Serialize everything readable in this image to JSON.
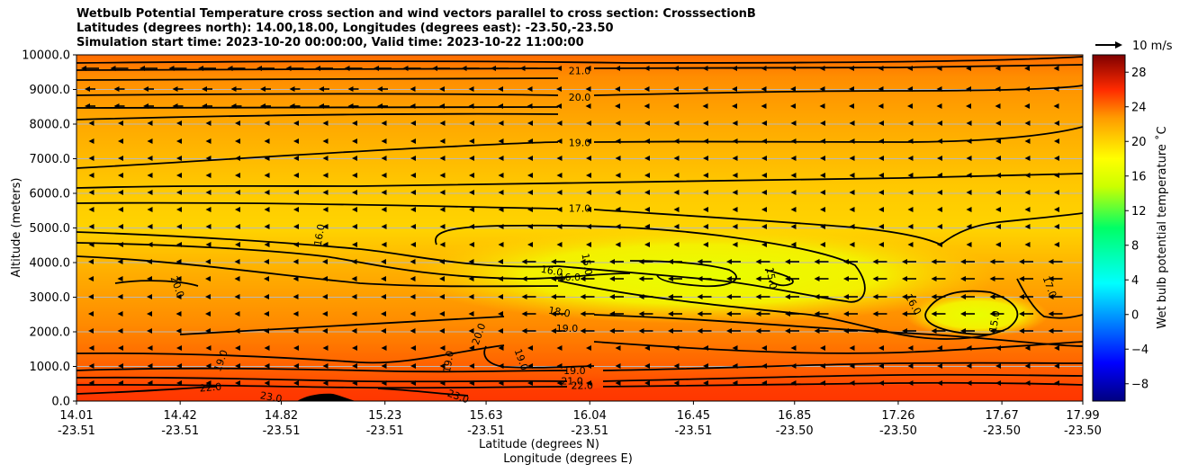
{
  "title_lines": [
    "Wetbulb Potential Temperature cross section and wind vectors parallel to cross section: CrosssectionB",
    "Latitudes (degrees north): 14.00,18.00, Longitudes (degrees east): -23.50,-23.50",
    "Simulation start time: 2023-10-20 00:00:00, Valid time: 2023-10-22 11:00:00"
  ],
  "chart_data": {
    "type": "heatmap",
    "subtype": "filled contour cross section with contour lines and wind vectors",
    "ylabel": "Altitude (meters)",
    "xlabel_lines": [
      "Latitude (degrees N)",
      "Longitude (degrees E)"
    ],
    "ylim": [
      0,
      10000
    ],
    "yticks": [
      "0.0",
      "1000.0",
      "2000.0",
      "3000.0",
      "4000.0",
      "5000.0",
      "6000.0",
      "7000.0",
      "8000.0",
      "9000.0",
      "10000.0"
    ],
    "xticks": [
      {
        "lat": "14.01",
        "lon": "-23.51"
      },
      {
        "lat": "14.42",
        "lon": "-23.51"
      },
      {
        "lat": "14.82",
        "lon": "-23.51"
      },
      {
        "lat": "15.23",
        "lon": "-23.51"
      },
      {
        "lat": "15.63",
        "lon": "-23.51"
      },
      {
        "lat": "16.04",
        "lon": "-23.51"
      },
      {
        "lat": "16.45",
        "lon": "-23.51"
      },
      {
        "lat": "16.85",
        "lon": "-23.50"
      },
      {
        "lat": "17.26",
        "lon": "-23.50"
      },
      {
        "lat": "17.67",
        "lon": "-23.50"
      },
      {
        "lat": "17.99",
        "lon": "-23.50"
      }
    ],
    "grid": "horizontal",
    "colorbar": {
      "label": "Wet bulb potential temperature ˚C",
      "range": [
        -10,
        30
      ],
      "ticks": [
        "-8",
        "-4",
        "0",
        "4",
        "8",
        "12",
        "16",
        "20",
        "24",
        "28"
      ]
    },
    "quiver_key": "10 m/s",
    "contour_labels": [
      {
        "text": "21.0",
        "lat": 16.0,
        "alt": 9550,
        "rot": 0
      },
      {
        "text": "20.0",
        "lat": 16.0,
        "alt": 8780,
        "rot": 0
      },
      {
        "text": "19.0",
        "lat": 16.0,
        "alt": 7470,
        "rot": 0
      },
      {
        "text": "17.0",
        "lat": 16.0,
        "alt": 5570,
        "rot": 0
      },
      {
        "text": "16.0",
        "lat": 14.97,
        "alt": 4800,
        "rot": -80
      },
      {
        "text": "20.0",
        "lat": 14.41,
        "alt": 3300,
        "rot": 70
      },
      {
        "text": "16.0",
        "lat": 15.89,
        "alt": 3770,
        "rot": 10
      },
      {
        "text": "16.0",
        "lat": 15.96,
        "alt": 3590,
        "rot": 0
      },
      {
        "text": "15.0",
        "lat": 16.03,
        "alt": 3950,
        "rot": 80
      },
      {
        "text": "15.0",
        "lat": 16.76,
        "alt": 3550,
        "rot": 80
      },
      {
        "text": "18.0",
        "lat": 15.92,
        "alt": 2580,
        "rot": 10
      },
      {
        "text": "19.0",
        "lat": 15.95,
        "alt": 2110,
        "rot": 0
      },
      {
        "text": "16.0",
        "lat": 17.32,
        "alt": 2800,
        "rot": 60
      },
      {
        "text": "15.0",
        "lat": 17.64,
        "alt": 2300,
        "rot": -80
      },
      {
        "text": "17.0",
        "lat": 17.86,
        "alt": 3300,
        "rot": 70
      },
      {
        "text": "19.0",
        "lat": 14.58,
        "alt": 1170,
        "rot": -70
      },
      {
        "text": "20.0",
        "lat": 15.6,
        "alt": 1940,
        "rot": -70
      },
      {
        "text": "19.0",
        "lat": 15.48,
        "alt": 1140,
        "rot": -80
      },
      {
        "text": "19.0",
        "lat": 15.77,
        "alt": 1200,
        "rot": 70
      },
      {
        "text": "19.0",
        "lat": 15.98,
        "alt": 880,
        "rot": 0
      },
      {
        "text": "21.0",
        "lat": 15.97,
        "alt": 590,
        "rot": 0
      },
      {
        "text": "22.0",
        "lat": 16.01,
        "alt": 450,
        "rot": 0
      },
      {
        "text": "22.0",
        "lat": 14.54,
        "alt": 400,
        "rot": -5
      },
      {
        "text": "23.0",
        "lat": 14.78,
        "alt": 120,
        "rot": 10
      },
      {
        "text": "23.0",
        "lat": 15.52,
        "alt": 140,
        "rot": 20
      }
    ]
  }
}
